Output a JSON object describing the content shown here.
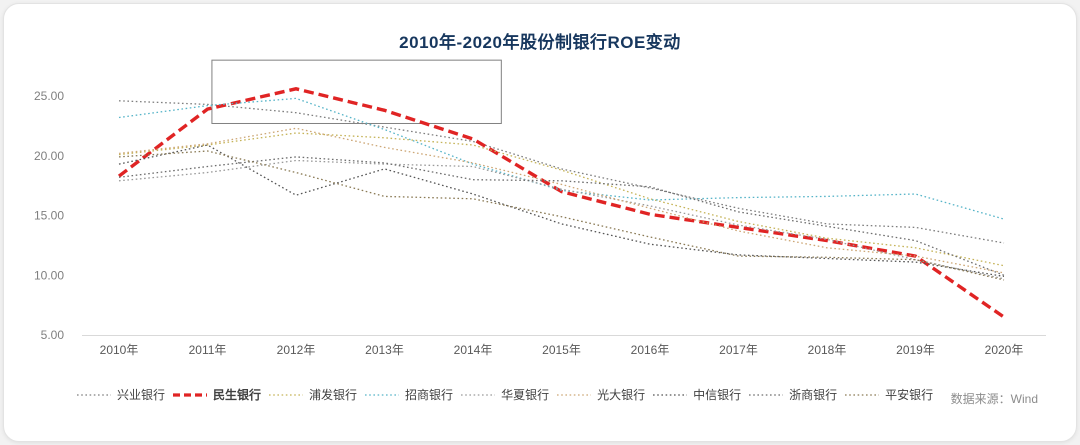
{
  "title": "2010年-2020年股份制银行ROE变动",
  "source": "数据来源：Wind",
  "colors": {
    "title": "#17375e",
    "axis_text": "#7f7f7f",
    "x_axis_text": "#595959",
    "legend_text": "#404040",
    "source_text": "#8c8c8c",
    "highlight_series": "#e02424",
    "axis_line": "#d9d9d9",
    "annotation_border": "#808080"
  },
  "chart_data": {
    "type": "line",
    "title": "2010年-2020年股份制银行ROE变动",
    "xlabel": "",
    "ylabel": "",
    "categories": [
      "2010年",
      "2011年",
      "2012年",
      "2013年",
      "2014年",
      "2015年",
      "2016年",
      "2017年",
      "2018年",
      "2019年",
      "2020年"
    ],
    "ylim": [
      5,
      25
    ],
    "yticks": [
      "5.00",
      "10.00",
      "15.00",
      "20.00",
      "25.00"
    ],
    "grid": false,
    "legend_position": "bottom",
    "annotation_box": {
      "x0": 1.05,
      "x1": 4.32,
      "y0": 22.7,
      "y1": 28.0
    },
    "series": [
      {
        "name": "兴业银行",
        "color": "#7f7f7f",
        "style": "dotted",
        "values": [
          24.6,
          24.3,
          23.6,
          22.4,
          21.2,
          18.9,
          17.3,
          15.6,
          14.3,
          14.0,
          12.7
        ]
      },
      {
        "name": "民生银行",
        "color": "#e02424",
        "style": "dashed-bold",
        "values": [
          18.3,
          23.9,
          25.6,
          23.8,
          21.4,
          17.0,
          15.1,
          14.0,
          12.9,
          11.6,
          6.5
        ]
      },
      {
        "name": "浦发银行",
        "color": "#c5b358",
        "style": "dotted",
        "values": [
          20.1,
          20.9,
          21.9,
          21.5,
          20.9,
          18.8,
          16.4,
          14.5,
          13.1,
          12.3,
          10.8
        ]
      },
      {
        "name": "招商银行",
        "color": "#56b4c8",
        "style": "dotted",
        "values": [
          23.2,
          24.2,
          24.8,
          22.2,
          19.3,
          17.1,
          16.3,
          16.5,
          16.6,
          16.8,
          14.7
        ]
      },
      {
        "name": "华夏银行",
        "color": "#9a9a9a",
        "style": "dotted",
        "values": [
          17.9,
          18.6,
          19.6,
          19.3,
          19.1,
          17.2,
          15.8,
          14.2,
          13.0,
          11.3,
          9.7
        ]
      },
      {
        "name": "光大银行",
        "color": "#cda776",
        "style": "dotted",
        "values": [
          20.2,
          21.0,
          22.3,
          20.7,
          19.4,
          17.6,
          15.6,
          13.7,
          12.3,
          11.6,
          10.2
        ]
      },
      {
        "name": "中信银行",
        "color": "#555555",
        "style": "dotted",
        "values": [
          19.3,
          20.9,
          16.7,
          18.9,
          16.8,
          14.3,
          12.6,
          11.7,
          11.4,
          11.1,
          9.9
        ]
      },
      {
        "name": "浙商银行",
        "color": "#6e6e6e",
        "style": "dotted",
        "values": [
          18.2,
          19.1,
          19.9,
          19.4,
          18.0,
          17.9,
          17.4,
          15.3,
          14.1,
          12.9,
          10.0
        ]
      },
      {
        "name": "平安银行",
        "color": "#8a7a55",
        "style": "dotted",
        "values": [
          19.9,
          20.4,
          18.6,
          16.6,
          16.4,
          14.9,
          13.2,
          11.6,
          11.5,
          11.3,
          9.6
        ]
      }
    ]
  }
}
